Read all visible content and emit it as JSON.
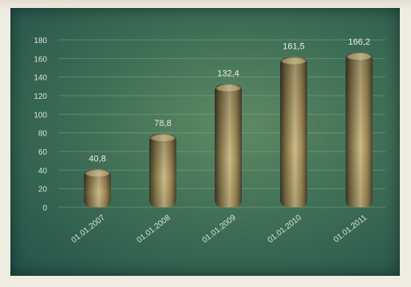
{
  "chart_data": {
    "type": "bar",
    "categories": [
      "01.01.2007",
      "01.01.2008",
      "01.01.2009",
      "01.01.2010",
      "01.01.2011"
    ],
    "values": [
      40.8,
      78.8,
      132.4,
      161.5,
      166.2
    ],
    "value_labels": [
      "40,8",
      "78,8",
      "132,4",
      "161,5",
      "166,2"
    ],
    "title": "",
    "xlabel": "",
    "ylabel": "",
    "ylim": [
      0,
      180
    ],
    "yticks": [
      0,
      20,
      40,
      60,
      80,
      100,
      120,
      140,
      160,
      180
    ],
    "grid": true,
    "legend": "none",
    "colors": {
      "bar_light": "#d7c590",
      "bar_mid": "#a88f58",
      "bar_dark": "#4d4a35",
      "background": "#3f6f56",
      "grid": "#9fbf9f"
    }
  }
}
